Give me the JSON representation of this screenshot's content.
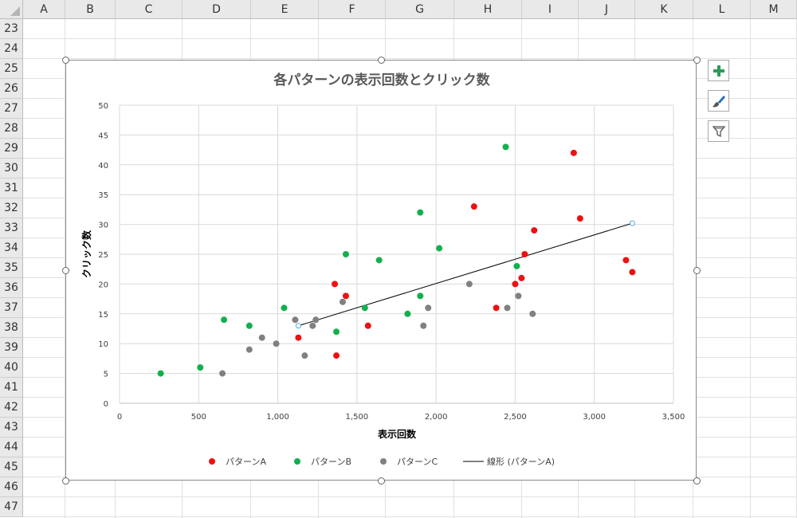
{
  "sheet": {
    "columns": [
      "A",
      "B",
      "C",
      "D",
      "E",
      "F",
      "G",
      "H",
      "I",
      "J",
      "K",
      "L",
      "M"
    ],
    "rows": [
      "23",
      "24",
      "25",
      "26",
      "27",
      "28",
      "29",
      "30",
      "31",
      "32",
      "33",
      "34",
      "35",
      "36",
      "37",
      "38",
      "39",
      "40",
      "41",
      "42",
      "43",
      "44",
      "45",
      "46",
      "47"
    ]
  },
  "side_buttons": {
    "add": "chart-elements-icon",
    "style": "chart-styles-icon",
    "filter": "chart-filters-icon",
    "accent_color": "#2e9b57"
  },
  "chart_data": {
    "type": "scatter",
    "title": "各パターンの表示回数とクリック数",
    "xlabel": "表示回数",
    "ylabel": "クリック数",
    "xlim": [
      0,
      3500
    ],
    "ylim": [
      0,
      50
    ],
    "x_ticks": [
      0,
      500,
      1000,
      1500,
      2000,
      2500,
      3000,
      3500
    ],
    "x_tick_labels": [
      "0",
      "500",
      "1,000",
      "1,500",
      "2,000",
      "2,500",
      "3,000",
      "3,500"
    ],
    "y_ticks": [
      0,
      5,
      10,
      15,
      20,
      25,
      30,
      35,
      40,
      45,
      50
    ],
    "y_tick_labels": [
      "0",
      "5",
      "10",
      "15",
      "20",
      "25",
      "30",
      "35",
      "40",
      "45",
      "50"
    ],
    "grid": true,
    "legend_position": "bottom",
    "series": [
      {
        "name": "パターンA",
        "color": "#ee1111",
        "points": [
          [
            1130,
            11
          ],
          [
            1360,
            20
          ],
          [
            1370,
            8
          ],
          [
            1430,
            18
          ],
          [
            1570,
            13
          ],
          [
            2240,
            33
          ],
          [
            2380,
            16
          ],
          [
            2500,
            20
          ],
          [
            2540,
            21
          ],
          [
            2560,
            25
          ],
          [
            2620,
            29
          ],
          [
            2870,
            42
          ],
          [
            2910,
            31
          ],
          [
            3200,
            24
          ],
          [
            3240,
            22
          ]
        ]
      },
      {
        "name": "パターンB",
        "color": "#12b04c",
        "points": [
          [
            260,
            5
          ],
          [
            510,
            6
          ],
          [
            660,
            14
          ],
          [
            820,
            13
          ],
          [
            1040,
            16
          ],
          [
            1370,
            12
          ],
          [
            1430,
            25
          ],
          [
            1550,
            16
          ],
          [
            1640,
            24
          ],
          [
            1820,
            15
          ],
          [
            1900,
            32
          ],
          [
            1900,
            18
          ],
          [
            2020,
            26
          ],
          [
            2440,
            43
          ],
          [
            2510,
            23
          ]
        ]
      },
      {
        "name": "パターンC",
        "color": "#808080",
        "points": [
          [
            650,
            5
          ],
          [
            820,
            9
          ],
          [
            900,
            11
          ],
          [
            990,
            10
          ],
          [
            1110,
            14
          ],
          [
            1170,
            8
          ],
          [
            1220,
            13
          ],
          [
            1240,
            14
          ],
          [
            1410,
            17
          ],
          [
            1920,
            13
          ],
          [
            1950,
            16
          ],
          [
            2210,
            20
          ],
          [
            2450,
            16
          ],
          [
            2520,
            18
          ],
          [
            2610,
            15
          ]
        ]
      }
    ],
    "trendline": {
      "name": "線形 (パターンA)",
      "series": "パターンA",
      "type": "linear",
      "color": "#000000",
      "endpoint_color": "#5aa7dc",
      "x": [
        1130,
        3240
      ],
      "y": [
        13.0,
        30.2
      ]
    }
  }
}
